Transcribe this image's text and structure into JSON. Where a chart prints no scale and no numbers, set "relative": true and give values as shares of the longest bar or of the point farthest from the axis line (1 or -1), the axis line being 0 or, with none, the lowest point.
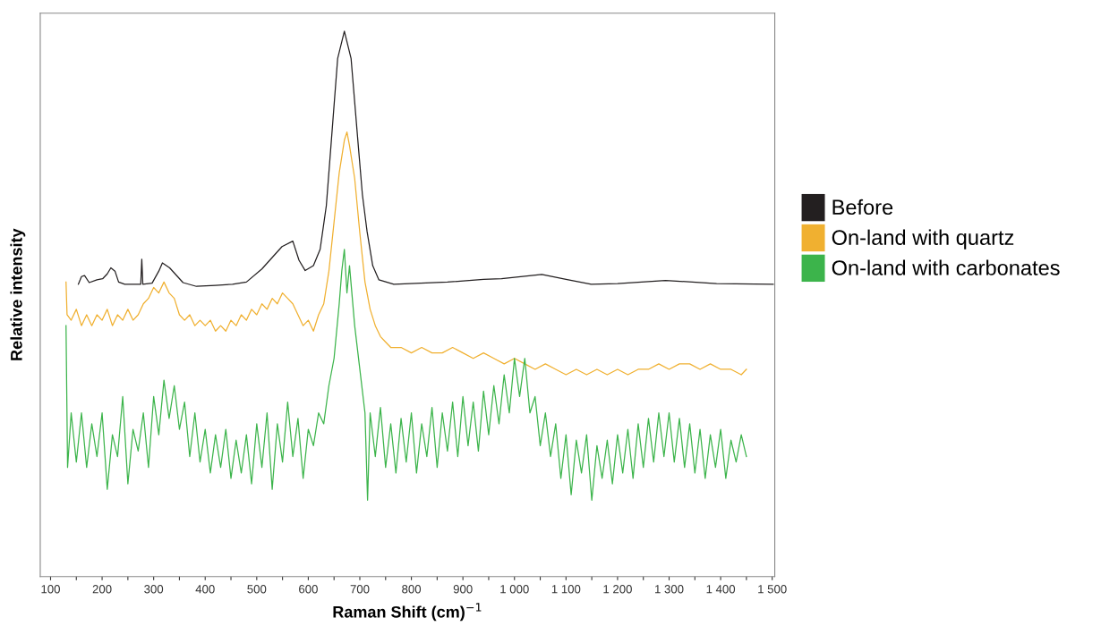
{
  "chart_data": {
    "type": "line",
    "relative": true,
    "xlabel": "Raman Shift (cm)$^{−1}$",
    "ylabel": "Relative intensity",
    "legend": "right",
    "grid": false,
    "marker": "none",
    "line_style": "solid",
    "xlim": [
      80,
      1505
    ],
    "xticks": [
      100,
      {
        "value": 150,
        "label": null
      },
      200,
      {
        "value": 250,
        "label": null
      },
      300,
      {
        "value": 350,
        "label": null
      },
      400,
      {
        "value": 450,
        "label": null
      },
      500,
      {
        "value": 550,
        "label": null
      },
      600,
      {
        "value": 650,
        "label": null
      },
      700,
      {
        "value": 750,
        "label": null
      },
      800,
      {
        "value": 850,
        "label": null
      },
      900,
      {
        "value": 950,
        "label": null
      },
      {
        "value": 1000,
        "label": "1 000"
      },
      {
        "value": 1050,
        "label": null
      },
      {
        "value": 1100,
        "label": "1 100"
      },
      {
        "value": 1150,
        "label": null
      },
      {
        "value": 1200,
        "label": "1 200"
      },
      {
        "value": 1250,
        "label": null
      },
      {
        "value": 1300,
        "label": "1 300"
      },
      {
        "value": 1350,
        "label": null
      },
      {
        "value": 1400,
        "label": "1 400"
      },
      {
        "value": 1450,
        "label": null
      },
      {
        "value": 1500,
        "label": "1 500"
      }
    ],
    "series": [
      {
        "name": "Before",
        "color": "#231f20",
        "x": [
          154,
          160,
          166,
          175,
          190,
          201,
          210,
          217,
          225,
          232,
          244,
          260,
          275,
          277,
          279,
          297,
          310,
          317,
          331,
          357,
          383,
          420,
          453,
          480,
          510,
          549,
          570,
          582,
          594,
          610,
          623,
          635,
          644,
          657,
          670,
          683,
          697,
          705,
          714,
          725,
          737,
          766,
          870,
          940,
          975,
          1053,
          1100,
          1149,
          1200,
          1293,
          1392,
          1502
        ],
        "values": [
          0.536,
          0.55,
          0.552,
          0.539,
          0.544,
          0.546,
          0.555,
          0.566,
          0.56,
          0.54,
          0.536,
          0.536,
          0.536,
          0.582,
          0.536,
          0.538,
          0.56,
          0.575,
          0.566,
          0.539,
          0.532,
          0.534,
          0.536,
          0.54,
          0.564,
          0.605,
          0.615,
          0.58,
          0.561,
          0.57,
          0.6,
          0.68,
          0.79,
          0.95,
          1.0,
          0.95,
          0.79,
          0.7,
          0.633,
          0.57,
          0.544,
          0.536,
          0.54,
          0.545,
          0.546,
          0.554,
          0.545,
          0.536,
          0.537,
          0.543,
          0.537,
          0.536
        ]
      },
      {
        "name": "On-land with quartz",
        "color": "#f0b030",
        "x": [
          130,
          132,
          140,
          150,
          160,
          170,
          180,
          190,
          200,
          210,
          220,
          230,
          240,
          250,
          260,
          270,
          280,
          290,
          300,
          310,
          320,
          330,
          340,
          350,
          360,
          370,
          380,
          390,
          400,
          410,
          420,
          430,
          440,
          450,
          460,
          470,
          480,
          490,
          500,
          510,
          520,
          530,
          540,
          550,
          560,
          570,
          580,
          590,
          600,
          610,
          620,
          630,
          640,
          650,
          660,
          670,
          675,
          680,
          690,
          700,
          710,
          720,
          730,
          740,
          750,
          760,
          780,
          800,
          820,
          840,
          860,
          880,
          900,
          920,
          940,
          960,
          980,
          1000,
          1020,
          1040,
          1060,
          1080,
          1100,
          1120,
          1140,
          1160,
          1180,
          1200,
          1220,
          1240,
          1260,
          1280,
          1300,
          1320,
          1340,
          1360,
          1380,
          1400,
          1420,
          1440,
          1450
        ],
        "values": [
          0.54,
          0.48,
          0.47,
          0.49,
          0.46,
          0.48,
          0.46,
          0.48,
          0.47,
          0.49,
          0.46,
          0.48,
          0.47,
          0.49,
          0.47,
          0.48,
          0.5,
          0.51,
          0.53,
          0.52,
          0.54,
          0.52,
          0.51,
          0.48,
          0.47,
          0.48,
          0.46,
          0.47,
          0.46,
          0.47,
          0.45,
          0.46,
          0.45,
          0.47,
          0.46,
          0.48,
          0.47,
          0.49,
          0.48,
          0.5,
          0.49,
          0.51,
          0.5,
          0.52,
          0.51,
          0.5,
          0.48,
          0.46,
          0.47,
          0.45,
          0.48,
          0.5,
          0.56,
          0.65,
          0.74,
          0.8,
          0.815,
          0.79,
          0.73,
          0.63,
          0.54,
          0.49,
          0.46,
          0.44,
          0.43,
          0.42,
          0.42,
          0.41,
          0.42,
          0.41,
          0.41,
          0.42,
          0.41,
          0.4,
          0.41,
          0.4,
          0.39,
          0.4,
          0.39,
          0.38,
          0.39,
          0.38,
          0.37,
          0.38,
          0.37,
          0.38,
          0.37,
          0.38,
          0.37,
          0.38,
          0.38,
          0.39,
          0.38,
          0.39,
          0.39,
          0.38,
          0.39,
          0.38,
          0.38,
          0.37,
          0.38
        ]
      },
      {
        "name": "On-land with carbonates",
        "color": "#3cb44b",
        "x": [
          130,
          133,
          140,
          150,
          160,
          170,
          180,
          190,
          200,
          210,
          220,
          230,
          240,
          250,
          260,
          270,
          280,
          290,
          300,
          310,
          320,
          330,
          340,
          350,
          360,
          370,
          380,
          390,
          400,
          410,
          420,
          430,
          440,
          450,
          460,
          470,
          480,
          490,
          500,
          510,
          520,
          530,
          540,
          550,
          560,
          570,
          580,
          590,
          600,
          610,
          620,
          630,
          640,
          650,
          660,
          665,
          670,
          675,
          680,
          690,
          700,
          710,
          715,
          720,
          730,
          740,
          750,
          760,
          770,
          780,
          790,
          800,
          810,
          820,
          830,
          840,
          850,
          860,
          870,
          880,
          890,
          900,
          910,
          920,
          930,
          940,
          950,
          960,
          970,
          980,
          990,
          1000,
          1010,
          1020,
          1030,
          1040,
          1050,
          1060,
          1070,
          1080,
          1090,
          1100,
          1110,
          1120,
          1130,
          1140,
          1150,
          1160,
          1170,
          1180,
          1190,
          1200,
          1210,
          1220,
          1230,
          1240,
          1250,
          1260,
          1270,
          1280,
          1290,
          1300,
          1310,
          1320,
          1330,
          1340,
          1350,
          1360,
          1370,
          1380,
          1390,
          1400,
          1410,
          1420,
          1430,
          1440,
          1450
        ],
        "values": [
          0.46,
          0.2,
          0.3,
          0.21,
          0.3,
          0.2,
          0.28,
          0.22,
          0.3,
          0.16,
          0.26,
          0.22,
          0.33,
          0.17,
          0.27,
          0.23,
          0.3,
          0.2,
          0.33,
          0.26,
          0.36,
          0.29,
          0.35,
          0.27,
          0.32,
          0.22,
          0.3,
          0.21,
          0.27,
          0.19,
          0.26,
          0.2,
          0.27,
          0.18,
          0.25,
          0.19,
          0.26,
          0.17,
          0.28,
          0.2,
          0.3,
          0.16,
          0.28,
          0.21,
          0.32,
          0.22,
          0.29,
          0.18,
          0.27,
          0.24,
          0.3,
          0.28,
          0.35,
          0.4,
          0.5,
          0.56,
          0.6,
          0.52,
          0.57,
          0.46,
          0.38,
          0.3,
          0.14,
          0.3,
          0.22,
          0.31,
          0.2,
          0.28,
          0.19,
          0.29,
          0.21,
          0.3,
          0.19,
          0.28,
          0.22,
          0.31,
          0.2,
          0.3,
          0.23,
          0.32,
          0.22,
          0.33,
          0.24,
          0.32,
          0.23,
          0.34,
          0.26,
          0.35,
          0.28,
          0.37,
          0.3,
          0.4,
          0.33,
          0.4,
          0.3,
          0.33,
          0.24,
          0.3,
          0.22,
          0.28,
          0.18,
          0.26,
          0.15,
          0.25,
          0.19,
          0.26,
          0.14,
          0.24,
          0.18,
          0.25,
          0.17,
          0.26,
          0.19,
          0.27,
          0.18,
          0.28,
          0.2,
          0.29,
          0.21,
          0.3,
          0.22,
          0.3,
          0.21,
          0.29,
          0.2,
          0.28,
          0.19,
          0.27,
          0.18,
          0.26,
          0.2,
          0.27,
          0.18,
          0.25,
          0.21,
          0.26,
          0.22
        ]
      }
    ]
  }
}
